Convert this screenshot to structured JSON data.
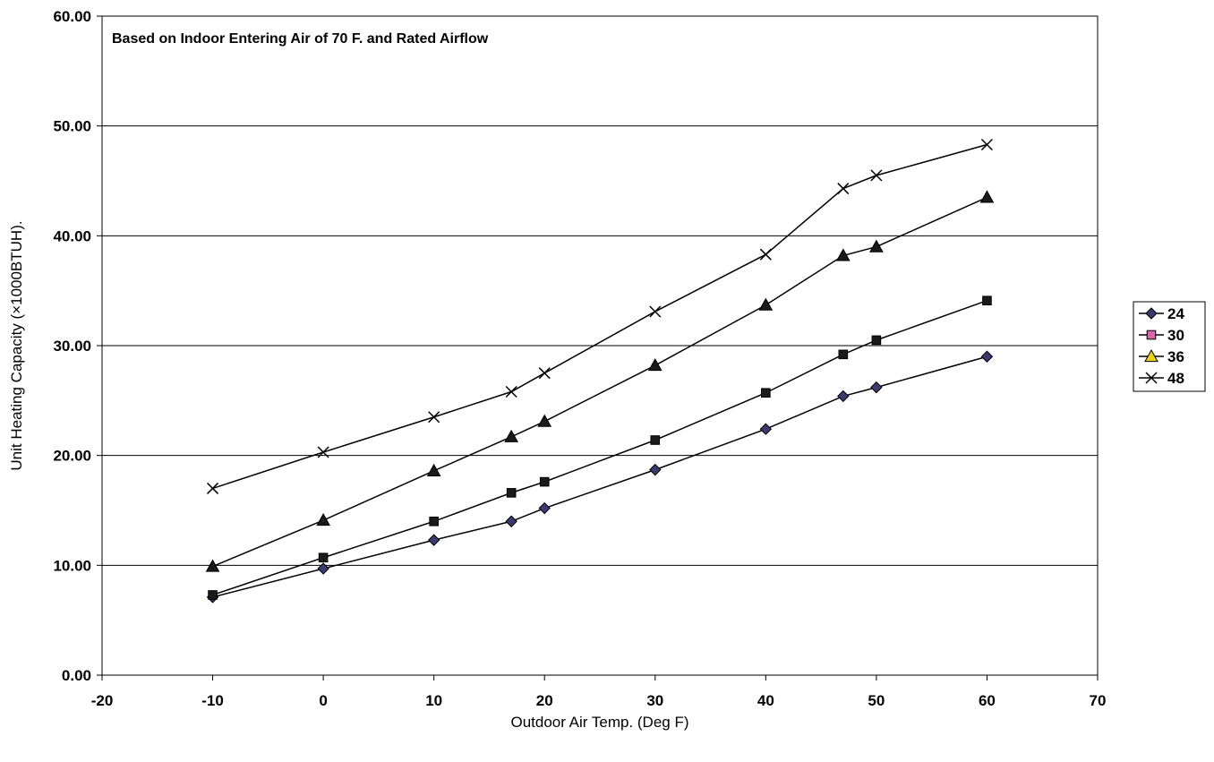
{
  "chart_data": {
    "type": "line",
    "annotation": "Based on Indoor Entering Air of 70 F. and Rated Airflow",
    "xlabel": "Outdoor Air Temp. (Deg F)",
    "ylabel": "Unit Heating Capacity (×1000BTUH).",
    "xlim": [
      -20,
      70
    ],
    "ylim": [
      0,
      60
    ],
    "x_ticks": [
      -20,
      -10,
      0,
      10,
      20,
      30,
      40,
      50,
      60,
      70
    ],
    "x_tick_labels": [
      "-20",
      "-10",
      "0",
      "10",
      "20",
      "30",
      "40",
      "50",
      "60",
      "70"
    ],
    "y_ticks": [
      0,
      10,
      20,
      30,
      40,
      50,
      60
    ],
    "y_tick_labels": [
      "0.00",
      "10.00",
      "20.00",
      "30.00",
      "40.00",
      "50.00",
      "60.00"
    ],
    "grid": "horizontal",
    "legend_position": "right",
    "x": [
      -10,
      0,
      10,
      17,
      20,
      30,
      40,
      47,
      50,
      60
    ],
    "series": [
      {
        "name": "24",
        "marker": "diamond",
        "marker_fill": "#3a3a6e",
        "values": [
          7.1,
          9.7,
          12.3,
          14.0,
          15.2,
          18.7,
          22.4,
          25.4,
          26.2,
          29.0
        ]
      },
      {
        "name": "30",
        "marker": "square",
        "marker_fill": "#1a1a1a",
        "legend_fill": "#d966a8",
        "values": [
          7.3,
          10.7,
          14.0,
          16.6,
          17.6,
          21.4,
          25.7,
          29.2,
          30.5,
          34.1
        ]
      },
      {
        "name": "36",
        "marker": "triangle",
        "marker_fill": "#1a1a1a",
        "legend_fill": "#e8d21a",
        "values": [
          9.9,
          14.1,
          18.6,
          21.7,
          23.1,
          28.2,
          33.7,
          38.2,
          39.0,
          43.5
        ]
      },
      {
        "name": "48",
        "marker": "x",
        "marker_fill": "#1a1a1a",
        "values": [
          17.0,
          20.3,
          23.5,
          25.8,
          27.5,
          33.1,
          38.3,
          44.3,
          45.5,
          48.3
        ]
      }
    ]
  }
}
